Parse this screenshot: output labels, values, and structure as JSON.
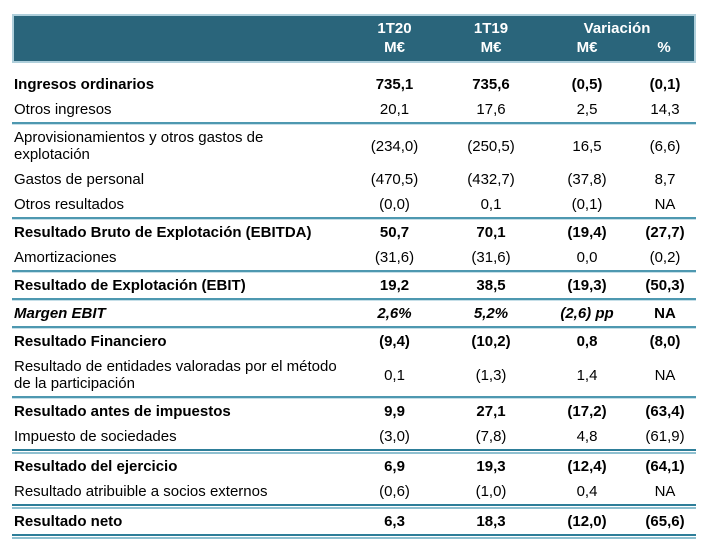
{
  "header": {
    "col_1t20": "1T20",
    "col_1t19": "1T19",
    "variacion": "Variación",
    "units": [
      "M€",
      "M€",
      "M€",
      "%"
    ]
  },
  "rows": [
    {
      "label": "Ingresos ordinarios",
      "values": [
        "735,1",
        "735,6",
        "(0,5)",
        "(0,1)"
      ]
    },
    {
      "label": "Otros ingresos",
      "values": [
        "20,1",
        "17,6",
        "2,5",
        "14,3"
      ]
    },
    {
      "label": "Aprovisionamientos y otros gastos de explotación",
      "values": [
        "(234,0)",
        "(250,5)",
        "16,5",
        "(6,6)"
      ]
    },
    {
      "label": "Gastos de personal",
      "values": [
        "(470,5)",
        "(432,7)",
        "(37,8)",
        "8,7"
      ]
    },
    {
      "label": "Otros resultados",
      "values": [
        "(0,0)",
        "0,1",
        "(0,1)",
        "NA"
      ]
    },
    {
      "label": "Resultado Bruto de Explotación (EBITDA)",
      "values": [
        "50,7",
        "70,1",
        "(19,4)",
        "(27,7)"
      ]
    },
    {
      "label": "Amortizaciones",
      "values": [
        "(31,6)",
        "(31,6)",
        "0,0",
        "(0,2)"
      ]
    },
    {
      "label": "Resultado de Explotación (EBIT)",
      "values": [
        "19,2",
        "38,5",
        "(19,3)",
        "(50,3)"
      ]
    },
    {
      "label": "Margen EBIT",
      "values": [
        "2,6%",
        "5,2%",
        "(2,6) pp",
        "NA"
      ]
    },
    {
      "label": "Resultado Financiero",
      "values": [
        "(9,4)",
        "(10,2)",
        "0,8",
        "(8,0)"
      ]
    },
    {
      "label": "Resultado de entidades valoradas por el método de la participación",
      "values": [
        "0,1",
        "(1,3)",
        "1,4",
        "NA"
      ]
    },
    {
      "label": "Resultado antes de impuestos",
      "values": [
        "9,9",
        "27,1",
        "(17,2)",
        "(63,4)"
      ]
    },
    {
      "label": "Impuesto de sociedades",
      "values": [
        "(3,0)",
        "(7,8)",
        "4,8",
        "(61,9)"
      ]
    },
    {
      "label": "Resultado del ejercicio",
      "values": [
        "6,9",
        "19,3",
        "(12,4)",
        "(64,1)"
      ]
    },
    {
      "label": "Resultado atribuible a socios externos",
      "values": [
        "(0,6)",
        "(1,0)",
        "0,4",
        "NA"
      ]
    },
    {
      "label": "Resultado neto",
      "values": [
        "6,3",
        "18,3",
        "(12,0)",
        "(65,6)"
      ]
    }
  ],
  "colors": {
    "header_bg": "#2A657B",
    "header_text": "#FFFFFF",
    "header_border": "#AFCFDB",
    "divider": "#4E98B0",
    "divider_strong": "#2E7E99",
    "body_text": "#000000"
  }
}
